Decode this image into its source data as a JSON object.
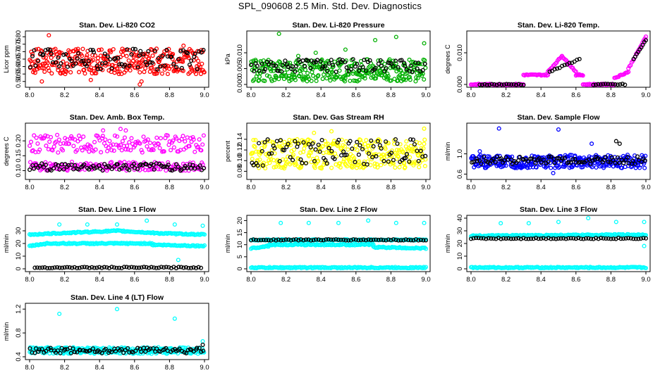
{
  "title": "SPL_090608  2.5 Min. Std. Dev. Diagnostics",
  "chart_data": [
    {
      "type": "scatter",
      "title": "Stan. Dev. Li-820 CO2",
      "ylabel": "Licor ppm",
      "xlim": [
        8.0,
        9.0
      ],
      "ylim": [
        0.48,
        0.82
      ],
      "xticks": [
        "8.0",
        "8.2",
        "8.4",
        "8.6",
        "8.8",
        "9.0"
      ],
      "yticks": [
        "0.50",
        "0.55",
        "0.60",
        "0.65",
        "0.70",
        "0.75",
        "0.80"
      ],
      "series": [
        {
          "color": "#ff0000",
          "bands": [
            [
              0.55,
              0.72
            ]
          ],
          "outliers": [
            [
              8.11,
              0.81
            ],
            [
              8.63,
              0.48
            ],
            [
              8.64,
              0.5
            ],
            [
              8.07,
              0.5
            ],
            [
              8.35,
              0.51
            ],
            [
              8.88,
              0.74
            ]
          ]
        },
        {
          "color": "#000000",
          "bands": [
            [
              0.58,
              0.72
            ]
          ],
          "outliers": []
        }
      ]
    },
    {
      "type": "scatter",
      "title": "Stan. Dev. Li-820 Pressure",
      "ylabel": "kPa",
      "xlim": [
        8.0,
        9.0
      ],
      "ylim": [
        0.0,
        0.016
      ],
      "xticks": [
        "8.0",
        "8.2",
        "8.4",
        "8.6",
        "8.8",
        "9.0"
      ],
      "yticks": [
        "0.000",
        "0.005",
        "0.010"
      ],
      "series": [
        {
          "color": "#00b000",
          "bands": [
            [
              0.001,
              0.008
            ]
          ],
          "outliers": [
            [
              8.16,
              0.016
            ],
            [
              8.37,
              0.01
            ],
            [
              8.54,
              0.011
            ],
            [
              8.71,
              0.014
            ],
            [
              8.83,
              0.015
            ],
            [
              8.99,
              0.013
            ],
            [
              8.27,
              0.009
            ]
          ]
        },
        {
          "color": "#000000",
          "bands": [
            [
              0.004,
              0.008
            ]
          ],
          "outliers": []
        }
      ]
    },
    {
      "type": "scatter",
      "title": "Stan. Dev. Li-820 Temp.",
      "ylabel": "degrees C",
      "xlim": [
        8.0,
        9.0
      ],
      "ylim": [
        0.0,
        0.016
      ],
      "xticks": [
        "8.0",
        "8.2",
        "8.4",
        "8.6",
        "8.8",
        "9.0"
      ],
      "yticks": [
        "0.000",
        "0.010"
      ],
      "series": [
        {
          "color": "#ff00ff",
          "segments": [
            [
              8.0,
              8.3,
              0,
              0
            ],
            [
              8.3,
              8.44,
              0.003,
              0.003
            ],
            [
              8.44,
              8.52,
              0.004,
              0.009
            ],
            [
              8.52,
              8.6,
              0.009,
              0.004
            ],
            [
              8.6,
              8.64,
              0.003,
              0.003
            ],
            [
              8.64,
              8.82,
              0,
              0
            ],
            [
              8.82,
              8.9,
              0.002,
              0.004
            ],
            [
              8.9,
              9.0,
              0.005,
              0.015
            ]
          ]
        },
        {
          "color": "#000000",
          "segments": [
            [
              8.05,
              8.3,
              0,
              0
            ],
            [
              8.45,
              8.62,
              0.004,
              0.008
            ],
            [
              8.7,
              8.88,
              0,
              0
            ],
            [
              8.93,
              9.0,
              0.008,
              0.014
            ]
          ]
        }
      ]
    },
    {
      "type": "scatter",
      "title": "Stan. Dev. Amb. Box Temp.",
      "ylabel": "degrees C",
      "xlim": [
        8.0,
        9.0
      ],
      "ylim": [
        0.08,
        0.25
      ],
      "xticks": [
        "8.0",
        "8.2",
        "8.4",
        "8.6",
        "8.8",
        "9.0"
      ],
      "yticks": [
        "0.10",
        "0.15",
        "0.20"
      ],
      "series": [
        {
          "color": "#ff00ff",
          "bands": [
            [
              0.16,
              0.22
            ],
            [
              0.1,
              0.13
            ]
          ],
          "outliers": [
            [
              8.52,
              0.24
            ],
            [
              8.55,
              0.235
            ],
            [
              8.42,
              0.235
            ]
          ]
        },
        {
          "color": "#000000",
          "bands": [
            [
              0.1,
              0.125
            ]
          ],
          "outliers": []
        }
      ]
    },
    {
      "type": "scatter",
      "title": "Stan. Dev. Gas Stream RH",
      "ylabel": "percent",
      "xlim": [
        8.0,
        9.0
      ],
      "ylim": [
        0.07,
        0.165
      ],
      "xticks": [
        "8.0",
        "8.2",
        "8.4",
        "8.6",
        "8.8",
        "9.0"
      ],
      "yticks": [
        "0.08",
        "0.10",
        "0.12",
        "0.14"
      ],
      "series": [
        {
          "color": "#ffff00",
          "bands": [
            [
              0.085,
              0.14
            ]
          ],
          "outliers": [
            [
              8.46,
              0.155
            ],
            [
              8.36,
              0.152
            ],
            [
              8.99,
              0.16
            ]
          ]
        },
        {
          "color": "#000000",
          "bands": [
            [
              0.09,
              0.14
            ]
          ],
          "outliers": []
        }
      ]
    },
    {
      "type": "scatter",
      "title": "Stan. Dev. Sample Flow",
      "ylabel": "ml/min",
      "xlim": [
        8.0,
        9.0
      ],
      "ylim": [
        0.55,
        1.55
      ],
      "xticks": [
        "8.0",
        "8.2",
        "8.4",
        "8.6",
        "8.8",
        "9.0"
      ],
      "yticks": [
        "0.6",
        "1.0"
      ],
      "series": [
        {
          "color": "#0000ff",
          "bands": [
            [
              0.72,
              0.98
            ]
          ],
          "outliers": [
            [
              8.16,
              1.5
            ],
            [
              8.5,
              1.48
            ],
            [
              8.69,
              1.2
            ],
            [
              8.47,
              0.62
            ],
            [
              8.05,
              1.05
            ]
          ]
        },
        {
          "color": "#000000",
          "bands": [
            [
              0.8,
              0.95
            ]
          ],
          "outliers": [
            [
              8.83,
              1.25
            ],
            [
              8.85,
              1.2
            ]
          ]
        }
      ]
    },
    {
      "type": "scatter",
      "title": "Stan. Dev. Line 1 Flow",
      "ylabel": "ml/min",
      "xlim": [
        8.0,
        9.0
      ],
      "ylim": [
        0,
        40
      ],
      "xticks": [
        "8.0",
        "8.2",
        "8.4",
        "8.6",
        "8.8",
        "9.0"
      ],
      "yticks": [
        "0",
        "10",
        "20",
        "30"
      ],
      "series": [
        {
          "color": "#00ffff",
          "segments": [
            [
              8.0,
              8.15,
              27,
              28
            ],
            [
              8.15,
              8.5,
              28,
              30
            ],
            [
              8.5,
              8.75,
              30,
              28
            ],
            [
              8.75,
              9.0,
              28,
              27
            ],
            [
              8.0,
              8.1,
              18,
              20
            ],
            [
              8.1,
              8.7,
              20,
              20
            ],
            [
              8.7,
              9.0,
              19,
              18
            ]
          ],
          "outliers": [
            [
              8.17,
              35
            ],
            [
              8.33,
              35
            ],
            [
              8.67,
              38
            ],
            [
              8.5,
              35
            ],
            [
              8.83,
              35
            ],
            [
              8.99,
              34
            ],
            [
              8.85,
              7
            ]
          ]
        },
        {
          "color": "#000000",
          "segments": [
            [
              8.03,
              8.98,
              1,
              1
            ]
          ]
        }
      ]
    },
    {
      "type": "scatter",
      "title": "Stan. Dev. Line 2 Flow",
      "ylabel": "ml/min",
      "xlim": [
        8.0,
        9.0
      ],
      "ylim": [
        0,
        21
      ],
      "xticks": [
        "8.0",
        "8.2",
        "8.4",
        "8.6",
        "8.8",
        "9.0"
      ],
      "yticks": [
        "0",
        "5",
        "10",
        "15",
        "20"
      ],
      "series": [
        {
          "color": "#00ffff",
          "segments": [
            [
              8.0,
              8.1,
              8.5,
              9.5
            ],
            [
              8.1,
              8.7,
              10,
              10
            ],
            [
              8.7,
              9.0,
              9,
              8.5
            ],
            [
              8.0,
              9.0,
              0.5,
              0.5
            ],
            [
              8.0,
              9.0,
              12,
              12
            ]
          ],
          "outliers": [
            [
              8.17,
              19
            ],
            [
              8.33,
              19
            ],
            [
              8.5,
              19
            ],
            [
              8.67,
              20
            ],
            [
              8.83,
              19
            ],
            [
              8.99,
              19
            ]
          ]
        },
        {
          "color": "#000000",
          "segments": [
            [
              8.0,
              9.0,
              12,
              12
            ]
          ]
        }
      ]
    },
    {
      "type": "scatter",
      "title": "Stan. Dev. Line 3 Flow",
      "ylabel": "ml/min",
      "xlim": [
        8.0,
        9.0
      ],
      "ylim": [
        0,
        40
      ],
      "xticks": [
        "8.0",
        "8.2",
        "8.4",
        "8.6",
        "8.8",
        "9.0"
      ],
      "yticks": [
        "0",
        "10",
        "20",
        "30",
        "40"
      ],
      "series": [
        {
          "color": "#00ffff",
          "segments": [
            [
              8.0,
              9.0,
              26,
              27
            ],
            [
              8.0,
              9.0,
              1,
              1
            ]
          ],
          "outliers": [
            [
              8.17,
              36
            ],
            [
              8.33,
              36
            ],
            [
              8.5,
              37
            ],
            [
              8.67,
              40
            ],
            [
              8.83,
              37
            ],
            [
              8.99,
              37
            ],
            [
              8.99,
              18
            ]
          ]
        },
        {
          "color": "#000000",
          "segments": [
            [
              8.0,
              9.0,
              24,
              24
            ]
          ]
        }
      ]
    },
    {
      "type": "scatter",
      "title": "Stan. Dev. Line 4 (LT) Flow",
      "ylabel": "ml/min",
      "xlim": [
        8.0,
        9.0
      ],
      "ylim": [
        0.4,
        1.25
      ],
      "xticks": [
        "8.0",
        "8.2",
        "8.4",
        "8.6",
        "8.8",
        "9.0"
      ],
      "yticks": [
        "0.4",
        "0.8",
        "1.2"
      ],
      "series": [
        {
          "color": "#00ffff",
          "bands": [
            [
              0.45,
              0.56
            ]
          ],
          "outliers": [
            [
              8.17,
              1.12
            ],
            [
              8.5,
              1.2
            ],
            [
              8.83,
              1.04
            ],
            [
              8.99,
              0.66
            ]
          ]
        },
        {
          "color": "#000000",
          "bands": [
            [
              0.46,
              0.55
            ]
          ],
          "outliers": [
            [
              8.99,
              0.6
            ]
          ]
        }
      ]
    }
  ]
}
